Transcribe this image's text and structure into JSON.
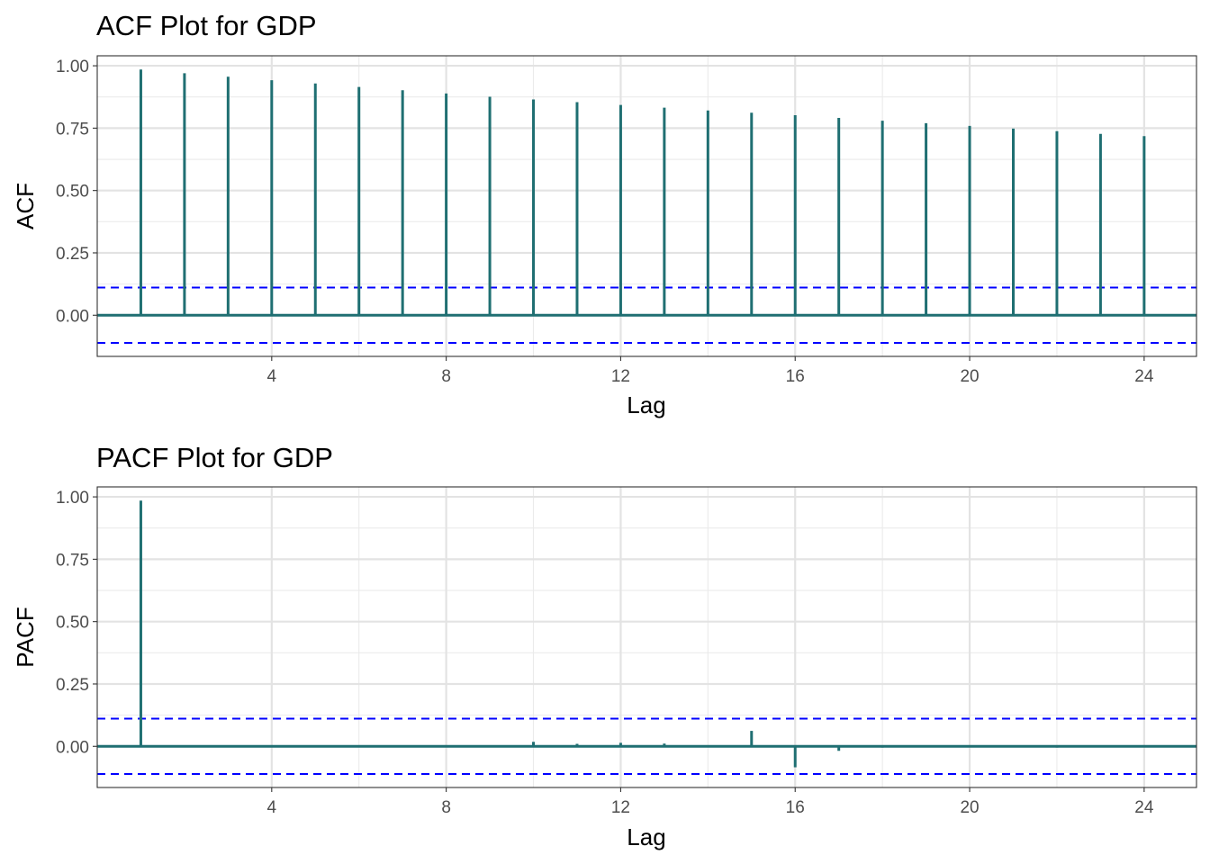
{
  "chart_data": [
    {
      "type": "bar",
      "title": "ACF Plot for GDP",
      "xlabel": "Lag",
      "ylabel": "ACF",
      "xlim": [
        0,
        25.2
      ],
      "ylim": [
        -0.165,
        1.04
      ],
      "x_ticks": [
        4,
        8,
        12,
        16,
        20,
        24
      ],
      "y_ticks": [
        0.0,
        0.25,
        0.5,
        0.75,
        1.0
      ],
      "y_tick_labels": [
        "0.00",
        "0.25",
        "0.50",
        "0.75",
        "1.00"
      ],
      "confidence_bound": 0.111,
      "grid": true,
      "colors": {
        "bars": "#1f6f72",
        "bounds": "#0000ff"
      },
      "lags": [
        1,
        2,
        3,
        4,
        5,
        6,
        7,
        8,
        9,
        10,
        11,
        12,
        13,
        14,
        15,
        16,
        17,
        18,
        19,
        20,
        21,
        22,
        23,
        24
      ],
      "values": [
        0.985,
        0.97,
        0.956,
        0.942,
        0.929,
        0.915,
        0.902,
        0.889,
        0.876,
        0.865,
        0.854,
        0.843,
        0.832,
        0.821,
        0.812,
        0.802,
        0.791,
        0.78,
        0.77,
        0.759,
        0.748,
        0.738,
        0.727,
        0.718
      ]
    },
    {
      "type": "bar",
      "title": "PACF Plot for GDP",
      "xlabel": "Lag",
      "ylabel": "PACF",
      "xlim": [
        0,
        25.2
      ],
      "ylim": [
        -0.165,
        1.04
      ],
      "x_ticks": [
        4,
        8,
        12,
        16,
        20,
        24
      ],
      "y_ticks": [
        0.0,
        0.25,
        0.5,
        0.75,
        1.0
      ],
      "y_tick_labels": [
        "0.00",
        "0.25",
        "0.50",
        "0.75",
        "1.00"
      ],
      "confidence_bound": 0.111,
      "grid": true,
      "colors": {
        "bars": "#1f6f72",
        "bounds": "#0000ff"
      },
      "lags": [
        1,
        2,
        3,
        4,
        5,
        6,
        7,
        8,
        9,
        10,
        11,
        12,
        13,
        14,
        15,
        16,
        17,
        18,
        19,
        20,
        21,
        22,
        23,
        24
      ],
      "values": [
        0.985,
        -0.002,
        -0.003,
        -0.004,
        -0.002,
        -0.003,
        -0.004,
        -0.002,
        -0.001,
        0.018,
        0.01,
        0.014,
        0.011,
        0.004,
        0.062,
        -0.084,
        -0.018,
        -0.005,
        -0.001,
        -0.002,
        -0.003,
        -0.005,
        -0.002,
        -0.003
      ]
    }
  ]
}
